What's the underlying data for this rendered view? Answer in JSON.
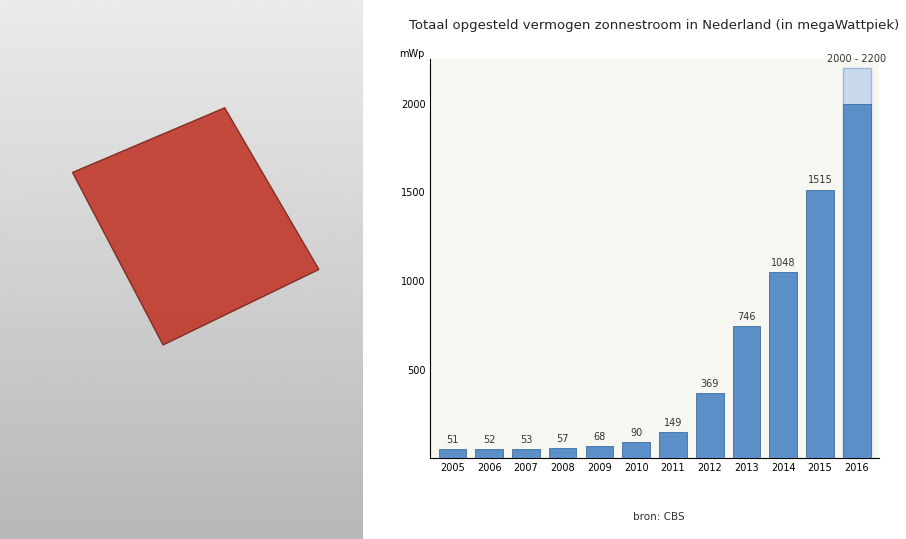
{
  "chart_data": {
    "type": "bar",
    "title": "Totaal opgesteld vermogen zonnestroom in Nederland (in megaWattpiek)",
    "ylabel": "mWp",
    "source": "bron: CBS",
    "categories": [
      "2005",
      "2006",
      "2007",
      "2008",
      "2009",
      "2010",
      "2011",
      "2012",
      "2013",
      "2014",
      "2015",
      "2016"
    ],
    "values": [
      51,
      52,
      53,
      57,
      68,
      90,
      149,
      369,
      746,
      1048,
      1515,
      2000
    ],
    "upper_values": [
      null,
      null,
      null,
      null,
      null,
      null,
      null,
      null,
      null,
      null,
      null,
      2200
    ],
    "value_labels": [
      "51",
      "52",
      "53",
      "57",
      "68",
      "90",
      "149",
      "369",
      "746",
      "1048",
      "1515",
      "2000 - 2200"
    ],
    "color": "#5b8fc7",
    "ylim": [
      0,
      2250
    ],
    "yticks": [
      500,
      1000,
      1500,
      2000
    ],
    "grid": false,
    "data_labels": true
  }
}
